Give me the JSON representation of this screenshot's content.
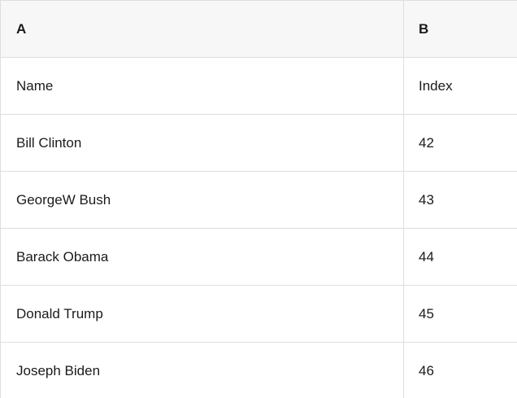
{
  "table": {
    "column_headers": [
      "A",
      "B"
    ],
    "rows": [
      [
        "Name",
        "Index"
      ],
      [
        "Bill Clinton",
        "42"
      ],
      [
        "GeorgeW Bush",
        "43"
      ],
      [
        "Barack Obama",
        "44"
      ],
      [
        "Donald Trump",
        "45"
      ],
      [
        "Joseph Biden",
        "46"
      ]
    ],
    "colors": {
      "header_background": "#f7f7f7",
      "grid_border": "#dedede",
      "text": "#1b1b1b",
      "row_background": "#ffffff"
    }
  }
}
